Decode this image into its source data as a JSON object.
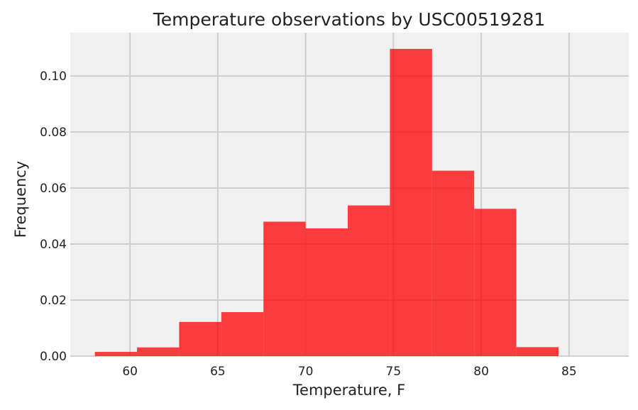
{
  "chart_data": {
    "type": "bar",
    "title": "Temperature observations by USC00519281",
    "xlabel": "Temperature, F",
    "ylabel": "Frequency",
    "xlim": [
      56.6,
      88.4
    ],
    "ylim": [
      0,
      0.1155
    ],
    "xticks": [
      60,
      65,
      70,
      75,
      80,
      85
    ],
    "yticks": [
      0.0,
      0.02,
      0.04,
      0.06,
      0.08,
      0.1
    ],
    "grid": true,
    "colors": {
      "bar": "#ff0000",
      "background": "#f0f0f0",
      "grid": "#cbcbcb"
    },
    "bins": [
      {
        "x0": 58.0,
        "x1": 60.4,
        "value": 0.0015
      },
      {
        "x0": 60.4,
        "x1": 62.8,
        "value": 0.0031
      },
      {
        "x0": 62.8,
        "x1": 65.2,
        "value": 0.0122
      },
      {
        "x0": 65.2,
        "x1": 67.6,
        "value": 0.0157
      },
      {
        "x0": 67.6,
        "x1": 70.0,
        "value": 0.048
      },
      {
        "x0": 70.0,
        "x1": 72.4,
        "value": 0.0456
      },
      {
        "x0": 72.4,
        "x1": 74.8,
        "value": 0.0538
      },
      {
        "x0": 74.8,
        "x1": 77.2,
        "value": 0.1097
      },
      {
        "x0": 77.2,
        "x1": 79.6,
        "value": 0.0662
      },
      {
        "x0": 79.6,
        "x1": 82.0,
        "value": 0.0526
      },
      {
        "x0": 82.0,
        "x1": 84.4,
        "value": 0.0032
      }
    ]
  }
}
